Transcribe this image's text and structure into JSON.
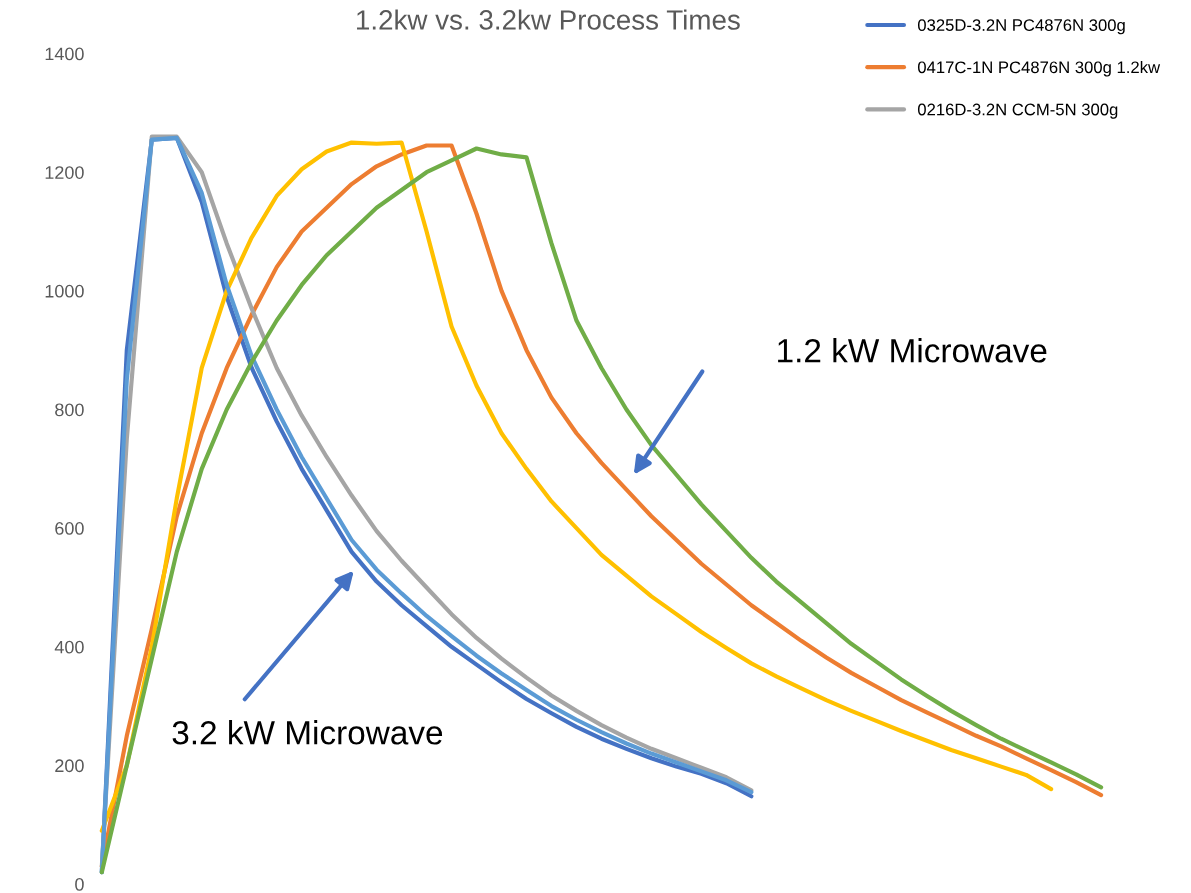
{
  "chart_data": {
    "type": "line",
    "title": "1.2kw vs. 3.2kw Process Times",
    "categories": [
      null,
      null,
      null,
      null,
      null,
      null,
      null,
      null,
      null,
      null,
      null,
      null,
      null,
      null,
      null,
      null,
      null,
      null,
      null,
      null,
      null,
      null,
      null,
      null,
      null,
      null,
      null,
      null,
      null,
      null,
      null,
      null,
      null,
      null,
      null,
      null,
      null,
      null,
      null,
      null,
      null
    ],
    "series": [
      {
        "name": "0325D-3.2N PC4876N 300g",
        "color": "#4472c4",
        "values": [
          20,
          900,
          1255,
          1258,
          1150,
          990,
          870,
          780,
          700,
          630,
          560,
          510,
          470,
          435,
          400,
          370,
          340,
          312,
          288,
          265,
          245,
          228,
          212,
          198,
          186,
          170,
          148,
          null,
          null,
          null,
          null,
          null,
          null,
          null,
          null,
          null,
          null,
          null,
          null,
          null,
          null
        ]
      },
      {
        "name": "0417C-1N PC4876N 300g 1.2kw",
        "color": "#ed7d31",
        "values": [
          30,
          250,
          430,
          620,
          760,
          870,
          960,
          1040,
          1100,
          1140,
          1180,
          1210,
          1230,
          1245,
          1245,
          1130,
          1000,
          900,
          820,
          760,
          710,
          665,
          620,
          580,
          540,
          505,
          470,
          440,
          410,
          382,
          356,
          333,
          310,
          290,
          270,
          250,
          232,
          212,
          192,
          172,
          150
        ]
      },
      {
        "name": "0216D-3.2N CCM-5N 300g",
        "color": "#a5a5a5",
        "values": [
          30,
          750,
          1260,
          1260,
          1200,
          1080,
          970,
          870,
          790,
          720,
          655,
          595,
          545,
          500,
          455,
          415,
          380,
          348,
          318,
          292,
          268,
          247,
          228,
          212,
          196,
          180,
          158,
          null,
          null,
          null,
          null,
          null,
          null,
          null,
          null,
          null,
          null,
          null,
          null,
          null,
          null
        ]
      },
      {
        "color": "#ffc000",
        "values": [
          90,
          200,
          400,
          650,
          870,
          1000,
          1090,
          1160,
          1205,
          1235,
          1250,
          1248,
          1250,
          1100,
          940,
          840,
          760,
          700,
          645,
          600,
          555,
          520,
          485,
          455,
          425,
          398,
          372,
          350,
          330,
          310,
          292,
          275,
          258,
          242,
          226,
          212,
          198,
          184,
          160,
          null,
          null
        ]
      },
      {
        "color": "#5b9bd5",
        "values": [
          20,
          850,
          1255,
          1258,
          1165,
          1010,
          890,
          800,
          720,
          650,
          580,
          530,
          490,
          452,
          418,
          385,
          355,
          327,
          300,
          277,
          256,
          237,
          220,
          205,
          190,
          175,
          155,
          null,
          null,
          null,
          null,
          null,
          null,
          null,
          null,
          null,
          null,
          null,
          null,
          null,
          null
        ]
      },
      {
        "color": "#70ad47",
        "values": [
          20,
          200,
          380,
          560,
          700,
          800,
          880,
          950,
          1010,
          1060,
          1100,
          1140,
          1170,
          1200,
          1220,
          1240,
          1230,
          1225,
          1080,
          950,
          870,
          800,
          740,
          690,
          640,
          595,
          550,
          510,
          475,
          440,
          405,
          375,
          345,
          318,
          292,
          268,
          245,
          225,
          205,
          185,
          163
        ]
      }
    ],
    "ylim": [
      0,
      1400
    ],
    "yticks": [
      0,
      200,
      400,
      600,
      800,
      1000,
      1200,
      1400
    ],
    "grid": false,
    "legend": "top right",
    "tick_labels": "y",
    "marker": "none",
    "line_style": "solid",
    "annotations": [
      "1.2 kW Microwave",
      "3.2 kW Microwave"
    ]
  }
}
